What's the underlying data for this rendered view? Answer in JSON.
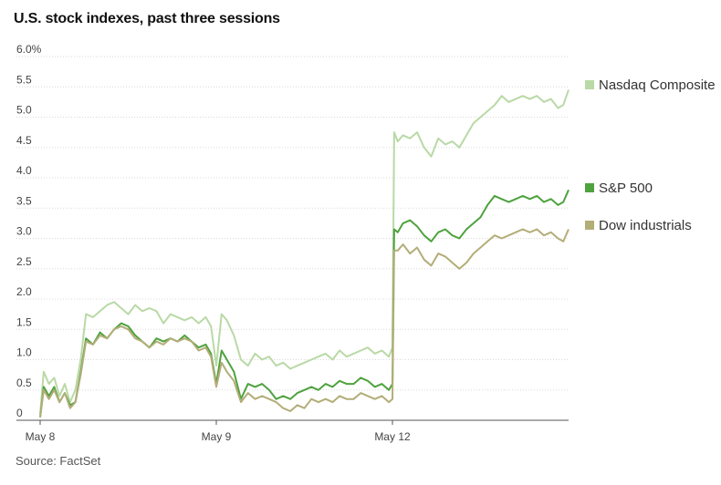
{
  "title": "U.S. stock indexes, past three sessions",
  "source": "Source: FactSet",
  "colors": {
    "nasdaq": "#b9d9a6",
    "sp500": "#4fa23e",
    "dow": "#b3ad78",
    "grid": "#d9d9d9",
    "axis": "#555555"
  },
  "chart_data": {
    "type": "line",
    "title": "U.S. stock indexes, past three sessions",
    "xlabel": "",
    "ylabel": "",
    "ylim": [
      0,
      6.0
    ],
    "yticks": [
      {
        "value": 0,
        "label": "0"
      },
      {
        "value": 0.5,
        "label": "0.5"
      },
      {
        "value": 1.0,
        "label": "1.0"
      },
      {
        "value": 1.5,
        "label": "1.5"
      },
      {
        "value": 2.0,
        "label": "2.0"
      },
      {
        "value": 2.5,
        "label": "2.5"
      },
      {
        "value": 3.0,
        "label": "3.0"
      },
      {
        "value": 3.5,
        "label": "3.5"
      },
      {
        "value": 4.0,
        "label": "4.0"
      },
      {
        "value": 4.5,
        "label": "4.5"
      },
      {
        "value": 5.0,
        "label": "5.0"
      },
      {
        "value": 5.5,
        "label": "5.5"
      },
      {
        "value": 6.0,
        "label": "6.0%"
      }
    ],
    "xlim": [
      0,
      3
    ],
    "xticks": [
      {
        "value": 0,
        "label": "May 8"
      },
      {
        "value": 1,
        "label": "May 9"
      },
      {
        "value": 2,
        "label": "May 12"
      }
    ],
    "grid": true,
    "legend_position": "right",
    "series": [
      {
        "name": "Nasdaq Composite",
        "color_key": "nasdaq",
        "x": [
          0,
          0.02,
          0.05,
          0.08,
          0.11,
          0.14,
          0.17,
          0.2,
          0.23,
          0.26,
          0.3,
          0.34,
          0.38,
          0.42,
          0.46,
          0.5,
          0.54,
          0.58,
          0.62,
          0.66,
          0.7,
          0.74,
          0.78,
          0.82,
          0.86,
          0.9,
          0.94,
          0.97,
          1.0,
          1.03,
          1.06,
          1.1,
          1.14,
          1.18,
          1.22,
          1.26,
          1.3,
          1.34,
          1.38,
          1.42,
          1.46,
          1.5,
          1.54,
          1.58,
          1.62,
          1.66,
          1.7,
          1.74,
          1.78,
          1.82,
          1.86,
          1.9,
          1.94,
          1.98,
          2.0,
          2.01,
          2.03,
          2.06,
          2.1,
          2.14,
          2.18,
          2.22,
          2.26,
          2.3,
          2.34,
          2.38,
          2.42,
          2.46,
          2.5,
          2.54,
          2.58,
          2.62,
          2.66,
          2.7,
          2.74,
          2.78,
          2.82,
          2.86,
          2.9,
          2.94,
          2.97,
          3.0
        ],
        "y": [
          0.1,
          0.8,
          0.6,
          0.7,
          0.4,
          0.6,
          0.3,
          0.5,
          1.0,
          1.75,
          1.7,
          1.8,
          1.9,
          1.95,
          1.85,
          1.75,
          1.9,
          1.8,
          1.85,
          1.8,
          1.6,
          1.75,
          1.7,
          1.65,
          1.7,
          1.6,
          1.7,
          1.55,
          0.9,
          1.75,
          1.65,
          1.4,
          1.0,
          0.9,
          1.1,
          1.0,
          1.05,
          0.9,
          0.95,
          0.85,
          0.9,
          0.95,
          1.0,
          1.05,
          1.1,
          1.0,
          1.15,
          1.05,
          1.1,
          1.15,
          1.2,
          1.1,
          1.15,
          1.05,
          1.2,
          4.75,
          4.6,
          4.7,
          4.65,
          4.75,
          4.5,
          4.35,
          4.65,
          4.55,
          4.6,
          4.5,
          4.7,
          4.9,
          5.0,
          5.1,
          5.2,
          5.35,
          5.25,
          5.3,
          5.35,
          5.3,
          5.35,
          5.25,
          5.3,
          5.15,
          5.2,
          5.45
        ]
      },
      {
        "name": "S&P 500",
        "color_key": "sp500",
        "x": [
          0,
          0.02,
          0.05,
          0.08,
          0.11,
          0.14,
          0.17,
          0.2,
          0.23,
          0.26,
          0.3,
          0.34,
          0.38,
          0.42,
          0.46,
          0.5,
          0.54,
          0.58,
          0.62,
          0.66,
          0.7,
          0.74,
          0.78,
          0.82,
          0.86,
          0.9,
          0.94,
          0.97,
          1.0,
          1.03,
          1.06,
          1.1,
          1.14,
          1.18,
          1.22,
          1.26,
          1.3,
          1.34,
          1.38,
          1.42,
          1.46,
          1.5,
          1.54,
          1.58,
          1.62,
          1.66,
          1.7,
          1.74,
          1.78,
          1.82,
          1.86,
          1.9,
          1.94,
          1.98,
          2.0,
          2.01,
          2.03,
          2.06,
          2.1,
          2.14,
          2.18,
          2.22,
          2.26,
          2.3,
          2.34,
          2.38,
          2.42,
          2.46,
          2.5,
          2.54,
          2.58,
          2.62,
          2.66,
          2.7,
          2.74,
          2.78,
          2.82,
          2.86,
          2.9,
          2.94,
          2.97,
          3.0
        ],
        "y": [
          0.05,
          0.55,
          0.4,
          0.55,
          0.3,
          0.45,
          0.25,
          0.3,
          0.8,
          1.35,
          1.25,
          1.45,
          1.35,
          1.5,
          1.6,
          1.55,
          1.4,
          1.3,
          1.2,
          1.35,
          1.3,
          1.35,
          1.3,
          1.4,
          1.3,
          1.2,
          1.25,
          1.1,
          0.6,
          1.15,
          1.0,
          0.8,
          0.35,
          0.6,
          0.55,
          0.6,
          0.5,
          0.35,
          0.4,
          0.35,
          0.45,
          0.5,
          0.55,
          0.5,
          0.6,
          0.55,
          0.65,
          0.6,
          0.6,
          0.7,
          0.65,
          0.55,
          0.6,
          0.5,
          0.6,
          3.15,
          3.1,
          3.25,
          3.3,
          3.2,
          3.05,
          2.95,
          3.1,
          3.15,
          3.05,
          3.0,
          3.15,
          3.25,
          3.35,
          3.55,
          3.7,
          3.65,
          3.6,
          3.65,
          3.7,
          3.65,
          3.7,
          3.6,
          3.65,
          3.55,
          3.6,
          3.8
        ]
      },
      {
        "name": "Dow industrials",
        "color_key": "dow",
        "x": [
          0,
          0.02,
          0.05,
          0.08,
          0.11,
          0.14,
          0.17,
          0.2,
          0.23,
          0.26,
          0.3,
          0.34,
          0.38,
          0.42,
          0.46,
          0.5,
          0.54,
          0.58,
          0.62,
          0.66,
          0.7,
          0.74,
          0.78,
          0.82,
          0.86,
          0.9,
          0.94,
          0.97,
          1.0,
          1.03,
          1.06,
          1.1,
          1.14,
          1.18,
          1.22,
          1.26,
          1.3,
          1.34,
          1.38,
          1.42,
          1.46,
          1.5,
          1.54,
          1.58,
          1.62,
          1.66,
          1.7,
          1.74,
          1.78,
          1.82,
          1.86,
          1.9,
          1.94,
          1.98,
          2.0,
          2.01,
          2.03,
          2.06,
          2.1,
          2.14,
          2.18,
          2.22,
          2.26,
          2.3,
          2.34,
          2.38,
          2.42,
          2.46,
          2.5,
          2.54,
          2.58,
          2.62,
          2.66,
          2.7,
          2.74,
          2.78,
          2.82,
          2.86,
          2.9,
          2.94,
          2.97,
          3.0
        ],
        "y": [
          0.05,
          0.5,
          0.35,
          0.5,
          0.3,
          0.45,
          0.2,
          0.3,
          0.75,
          1.3,
          1.25,
          1.4,
          1.35,
          1.5,
          1.55,
          1.5,
          1.35,
          1.3,
          1.2,
          1.3,
          1.25,
          1.35,
          1.3,
          1.35,
          1.3,
          1.15,
          1.2,
          1.05,
          0.55,
          0.95,
          0.8,
          0.65,
          0.3,
          0.45,
          0.35,
          0.4,
          0.35,
          0.3,
          0.2,
          0.15,
          0.25,
          0.2,
          0.35,
          0.3,
          0.35,
          0.3,
          0.4,
          0.35,
          0.35,
          0.45,
          0.4,
          0.35,
          0.4,
          0.3,
          0.35,
          2.8,
          2.8,
          2.9,
          2.75,
          2.85,
          2.65,
          2.55,
          2.75,
          2.7,
          2.6,
          2.5,
          2.6,
          2.75,
          2.85,
          2.95,
          3.05,
          3.0,
          3.05,
          3.1,
          3.15,
          3.1,
          3.15,
          3.05,
          3.1,
          3.0,
          2.95,
          3.15
        ]
      }
    ]
  },
  "legend": [
    {
      "label": "Nasdaq Composite",
      "color_key": "nasdaq"
    },
    {
      "label": "S&P 500",
      "color_key": "sp500"
    },
    {
      "label": "Dow industrials",
      "color_key": "dow"
    }
  ]
}
